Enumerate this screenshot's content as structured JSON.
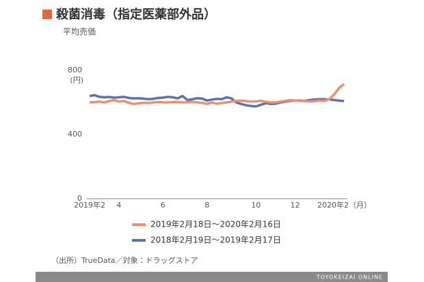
{
  "chart_data": {
    "type": "line",
    "title": "殺菌消毒（指定医薬部外品）",
    "subtitle": "平均売価",
    "y_unit": "(円)",
    "source": "（出所）TrueData／対象：ドラッグストア",
    "brand": "TOYOKEIZAI ONLINE",
    "categories": [
      "2019年2",
      null,
      null,
      null,
      null,
      null,
      "4",
      null,
      null,
      null,
      null,
      null,
      null,
      null,
      null,
      "6",
      null,
      null,
      null,
      null,
      null,
      null,
      null,
      null,
      "8",
      null,
      null,
      null,
      null,
      null,
      null,
      null,
      null,
      null,
      "10",
      null,
      null,
      null,
      null,
      null,
      null,
      null,
      "12",
      null,
      null,
      null,
      null,
      null,
      null,
      null,
      null,
      null,
      "2020年2（月）"
    ],
    "ylim": [
      0,
      800
    ],
    "yticks": [
      0,
      400,
      800
    ],
    "series": [
      {
        "name": "2019年2月18日～2020年2月16日",
        "color": "#ef8f6c",
        "values": [
          600,
          602,
          605,
          600,
          608,
          615,
          605,
          610,
          598,
          590,
          595,
          598,
          596,
          600,
          602,
          601,
          600,
          602,
          603,
          600,
          601,
          604,
          600,
          598,
          590,
          600,
          592,
          596,
          600,
          605,
          610,
          612,
          608,
          605,
          607,
          610,
          604,
          600,
          600,
          605,
          610,
          615,
          612,
          610,
          608,
          605,
          608,
          612,
          610,
          620,
          650,
          690,
          715
        ]
      },
      {
        "name": "2018年2月19日～2019年2月17日",
        "color": "#5a72b5",
        "values": [
          640,
          645,
          635,
          632,
          634,
          630,
          632,
          635,
          628,
          625,
          626,
          624,
          620,
          622,
          628,
          630,
          635,
          632,
          625,
          640,
          615,
          620,
          626,
          624,
          612,
          618,
          622,
          620,
          632,
          625,
          600,
          590,
          582,
          578,
          575,
          585,
          595,
          590,
          592,
          600,
          605,
          610,
          612,
          612,
          610,
          615,
          618,
          620,
          620,
          618,
          615,
          612,
          608
        ]
      }
    ]
  }
}
